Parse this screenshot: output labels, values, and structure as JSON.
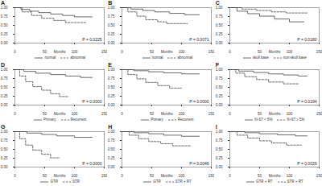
{
  "chart_data": [
    {
      "type": "line",
      "title": "A",
      "x_label": "Months",
      "xlim": [
        0,
        150
      ],
      "xticks": [
        0,
        50,
        100,
        150
      ],
      "ylim": [
        0,
        1
      ],
      "yticks": [
        {
          "value": 0,
          "label": "0.00"
        },
        {
          "value": 0.25,
          "label": "0.25"
        },
        {
          "value": 0.5,
          "label": "0.50"
        },
        {
          "value": 0.75,
          "label": "0.75"
        },
        {
          "value": 1,
          "label": "1.00"
        }
      ],
      "annotation": "P = 0.0225",
      "series": [
        {
          "name": "normal",
          "color": "#444444",
          "line_style": "solid",
          "x": [
            0,
            10,
            25,
            40,
            60,
            80,
            100,
            130
          ],
          "values": [
            1,
            0.95,
            0.9,
            0.86,
            0.82,
            0.78,
            0.74,
            0.74
          ]
        },
        {
          "name": "abnormal",
          "color": "#444444",
          "line_style": "dashed",
          "x": [
            0,
            12,
            28,
            45,
            65,
            85,
            120
          ],
          "values": [
            1,
            0.88,
            0.78,
            0.7,
            0.64,
            0.58,
            0.58
          ]
        }
      ]
    },
    {
      "type": "line",
      "title": "B",
      "x_label": "Months",
      "xlim": [
        0,
        150
      ],
      "xticks": [
        0,
        50,
        100,
        150
      ],
      "ylim": [
        0,
        1
      ],
      "yticks": [
        {
          "value": 0,
          "label": "0.00"
        },
        {
          "value": 0.25,
          "label": "0.25"
        },
        {
          "value": 0.5,
          "label": "0.50"
        },
        {
          "value": 0.75,
          "label": "0.75"
        },
        {
          "value": 1,
          "label": "1.00"
        }
      ],
      "annotation": "P = 0.0071",
      "series": [
        {
          "name": "normal",
          "color": "#444444",
          "line_style": "solid",
          "x": [
            0,
            15,
            35,
            55,
            80,
            105,
            130
          ],
          "values": [
            1,
            0.96,
            0.92,
            0.88,
            0.84,
            0.8,
            0.8
          ]
        },
        {
          "name": "abnormal",
          "color": "#444444",
          "line_style": "dashed",
          "x": [
            0,
            10,
            25,
            40,
            60,
            75,
            110
          ],
          "values": [
            1,
            0.88,
            0.76,
            0.66,
            0.6,
            0.55,
            0.55
          ]
        }
      ]
    },
    {
      "type": "line",
      "title": "C",
      "x_label": "Months",
      "xlim": [
        0,
        150
      ],
      "xticks": [
        0,
        50,
        100,
        150
      ],
      "ylim": [
        0,
        1
      ],
      "yticks": [
        {
          "value": 0,
          "label": "0.00"
        },
        {
          "value": 0.25,
          "label": "0.25"
        },
        {
          "value": 0.5,
          "label": "0.50"
        },
        {
          "value": 0.75,
          "label": "0.75"
        },
        {
          "value": 1,
          "label": "1.00"
        }
      ],
      "annotation": "P = 0.0180",
      "series": [
        {
          "name": "skull base",
          "color": "#444444",
          "line_style": "solid",
          "x": [
            0,
            12,
            30,
            50,
            75,
            100,
            125
          ],
          "values": [
            1,
            0.9,
            0.83,
            0.76,
            0.68,
            0.6,
            0.6
          ]
        },
        {
          "name": "non-skull base",
          "color": "#444444",
          "line_style": "dashed",
          "x": [
            0,
            20,
            45,
            70,
            95,
            130
          ],
          "values": [
            1,
            0.96,
            0.92,
            0.88,
            0.85,
            0.85
          ]
        }
      ]
    },
    {
      "type": "line",
      "title": "D",
      "x_label": "Months",
      "xlim": [
        0,
        150
      ],
      "xticks": [
        0,
        50,
        100,
        150
      ],
      "ylim": [
        0,
        1
      ],
      "yticks": [
        {
          "value": 0,
          "label": "0.00"
        },
        {
          "value": 0.25,
          "label": "0.25"
        },
        {
          "value": 0.5,
          "label": "0.50"
        },
        {
          "value": 0.75,
          "label": "0.75"
        },
        {
          "value": 1,
          "label": "1.00"
        }
      ],
      "annotation": "P = 0.0000",
      "series": [
        {
          "name": "Primary",
          "color": "#444444",
          "line_style": "solid",
          "x": [
            0,
            15,
            35,
            60,
            85,
            110,
            130
          ],
          "values": [
            1,
            0.95,
            0.9,
            0.86,
            0.82,
            0.78,
            0.78
          ]
        },
        {
          "name": "Recurrent",
          "color": "#444444",
          "line_style": "dashed",
          "x": [
            0,
            8,
            18,
            30,
            45,
            60,
            75,
            90
          ],
          "values": [
            1,
            0.82,
            0.66,
            0.52,
            0.42,
            0.32,
            0.24,
            0.24
          ]
        }
      ]
    },
    {
      "type": "line",
      "title": "E",
      "x_label": "Months",
      "xlim": [
        0,
        150
      ],
      "xticks": [
        0,
        50,
        100,
        150
      ],
      "ylim": [
        0,
        1
      ],
      "yticks": [
        {
          "value": 0,
          "label": "0.00"
        },
        {
          "value": 0.25,
          "label": "0.25"
        },
        {
          "value": 0.5,
          "label": "0.50"
        },
        {
          "value": 0.75,
          "label": "0.75"
        },
        {
          "value": 1,
          "label": "1.00"
        }
      ],
      "annotation": "P = 0.0000",
      "series": [
        {
          "name": "Primary",
          "color": "#444444",
          "line_style": "solid",
          "x": [
            0,
            20,
            45,
            70,
            100,
            130
          ],
          "values": [
            1,
            0.97,
            0.94,
            0.91,
            0.88,
            0.88
          ]
        },
        {
          "name": "Recurrent",
          "color": "#444444",
          "line_style": "dashed",
          "x": [
            0,
            10,
            25,
            40,
            60,
            80,
            100
          ],
          "values": [
            1,
            0.86,
            0.74,
            0.64,
            0.55,
            0.48,
            0.48
          ]
        }
      ]
    },
    {
      "type": "line",
      "title": "F",
      "x_label": "Months",
      "xlim": [
        0,
        150
      ],
      "xticks": [
        0,
        50,
        100,
        150
      ],
      "ylim": [
        0,
        1
      ],
      "yticks": [
        {
          "value": 0,
          "label": "0.00"
        },
        {
          "value": 0.25,
          "label": "0.25"
        },
        {
          "value": 0.5,
          "label": "0.50"
        },
        {
          "value": 0.75,
          "label": "0.75"
        },
        {
          "value": 1,
          "label": "1.00"
        }
      ],
      "annotation": "P = 0.0194",
      "series": [
        {
          "name": "Ki-67 < 5%",
          "color": "#444444",
          "line_style": "solid",
          "x": [
            0,
            15,
            40,
            65,
            90,
            115,
            130
          ],
          "values": [
            1,
            0.96,
            0.92,
            0.88,
            0.85,
            0.82,
            0.82
          ]
        },
        {
          "name": "Ki-67 ≥ 5%",
          "color": "#444444",
          "line_style": "dashed",
          "x": [
            0,
            10,
            25,
            45,
            65,
            90,
            115
          ],
          "values": [
            1,
            0.9,
            0.8,
            0.72,
            0.65,
            0.6,
            0.6
          ]
        }
      ]
    },
    {
      "type": "line",
      "title": "G",
      "x_label": "Months",
      "xlim": [
        0,
        150
      ],
      "xticks": [
        0,
        50,
        100,
        150
      ],
      "ylim": [
        0,
        1
      ],
      "yticks": [
        {
          "value": 0,
          "label": "0.00"
        },
        {
          "value": 0.25,
          "label": "0.25"
        },
        {
          "value": 0.5,
          "label": "0.50"
        },
        {
          "value": 0.75,
          "label": "0.75"
        },
        {
          "value": 1,
          "label": "1.00"
        }
      ],
      "annotation": "P = 0.0000",
      "series": [
        {
          "name": "GTR",
          "color": "#444444",
          "line_style": "solid",
          "x": [
            0,
            20,
            45,
            70,
            100,
            130
          ],
          "values": [
            1,
            0.96,
            0.92,
            0.88,
            0.84,
            0.84
          ]
        },
        {
          "name": "STR",
          "color": "#444444",
          "line_style": "dashed",
          "x": [
            0,
            8,
            18,
            30,
            45,
            60,
            75
          ],
          "values": [
            1,
            0.8,
            0.62,
            0.48,
            0.36,
            0.26,
            0.26
          ]
        }
      ]
    },
    {
      "type": "line",
      "title": "H",
      "x_label": "Months",
      "xlim": [
        0,
        150
      ],
      "xticks": [
        0,
        50,
        100,
        150
      ],
      "ylim": [
        0,
        1
      ],
      "yticks": [
        {
          "value": 0,
          "label": "0.00"
        },
        {
          "value": 0.25,
          "label": "0.25"
        },
        {
          "value": 0.5,
          "label": "0.50"
        },
        {
          "value": 0.75,
          "label": "0.75"
        },
        {
          "value": 1,
          "label": "1.00"
        }
      ],
      "annotation": "P = 0.0046",
      "series": [
        {
          "name": "GTR",
          "color": "#444444",
          "line_style": "solid",
          "x": [
            0,
            20,
            45,
            70,
            100,
            130
          ],
          "values": [
            1,
            0.97,
            0.94,
            0.9,
            0.87,
            0.87
          ]
        },
        {
          "name": "STR + RT",
          "color": "#444444",
          "line_style": "dashed",
          "x": [
            0,
            12,
            28,
            45,
            65,
            85,
            115
          ],
          "values": [
            1,
            0.9,
            0.8,
            0.72,
            0.66,
            0.6,
            0.6
          ]
        }
      ]
    },
    {
      "type": "line",
      "title": "I",
      "x_label": "Months",
      "xlim": [
        0,
        150
      ],
      "xticks": [
        0,
        50,
        100,
        150
      ],
      "ylim": [
        0,
        1
      ],
      "yticks": [
        {
          "value": 0,
          "label": "0.00"
        },
        {
          "value": 0.25,
          "label": "0.25"
        },
        {
          "value": 0.5,
          "label": "0.50"
        },
        {
          "value": 0.75,
          "label": "0.75"
        },
        {
          "value": 1,
          "label": "1.00"
        }
      ],
      "annotation": "P = 0.0029",
      "series": [
        {
          "name": "GTR + RT",
          "color": "#444444",
          "line_style": "solid",
          "x": [
            0,
            25,
            50,
            80,
            110,
            130
          ],
          "values": [
            1,
            0.97,
            0.94,
            0.91,
            0.88,
            0.88
          ]
        },
        {
          "name": "STR + RT",
          "color": "#444444",
          "line_style": "dashed",
          "x": [
            0,
            12,
            30,
            50,
            70,
            95,
            120
          ],
          "values": [
            1,
            0.9,
            0.82,
            0.74,
            0.68,
            0.62,
            0.62
          ]
        }
      ]
    }
  ]
}
